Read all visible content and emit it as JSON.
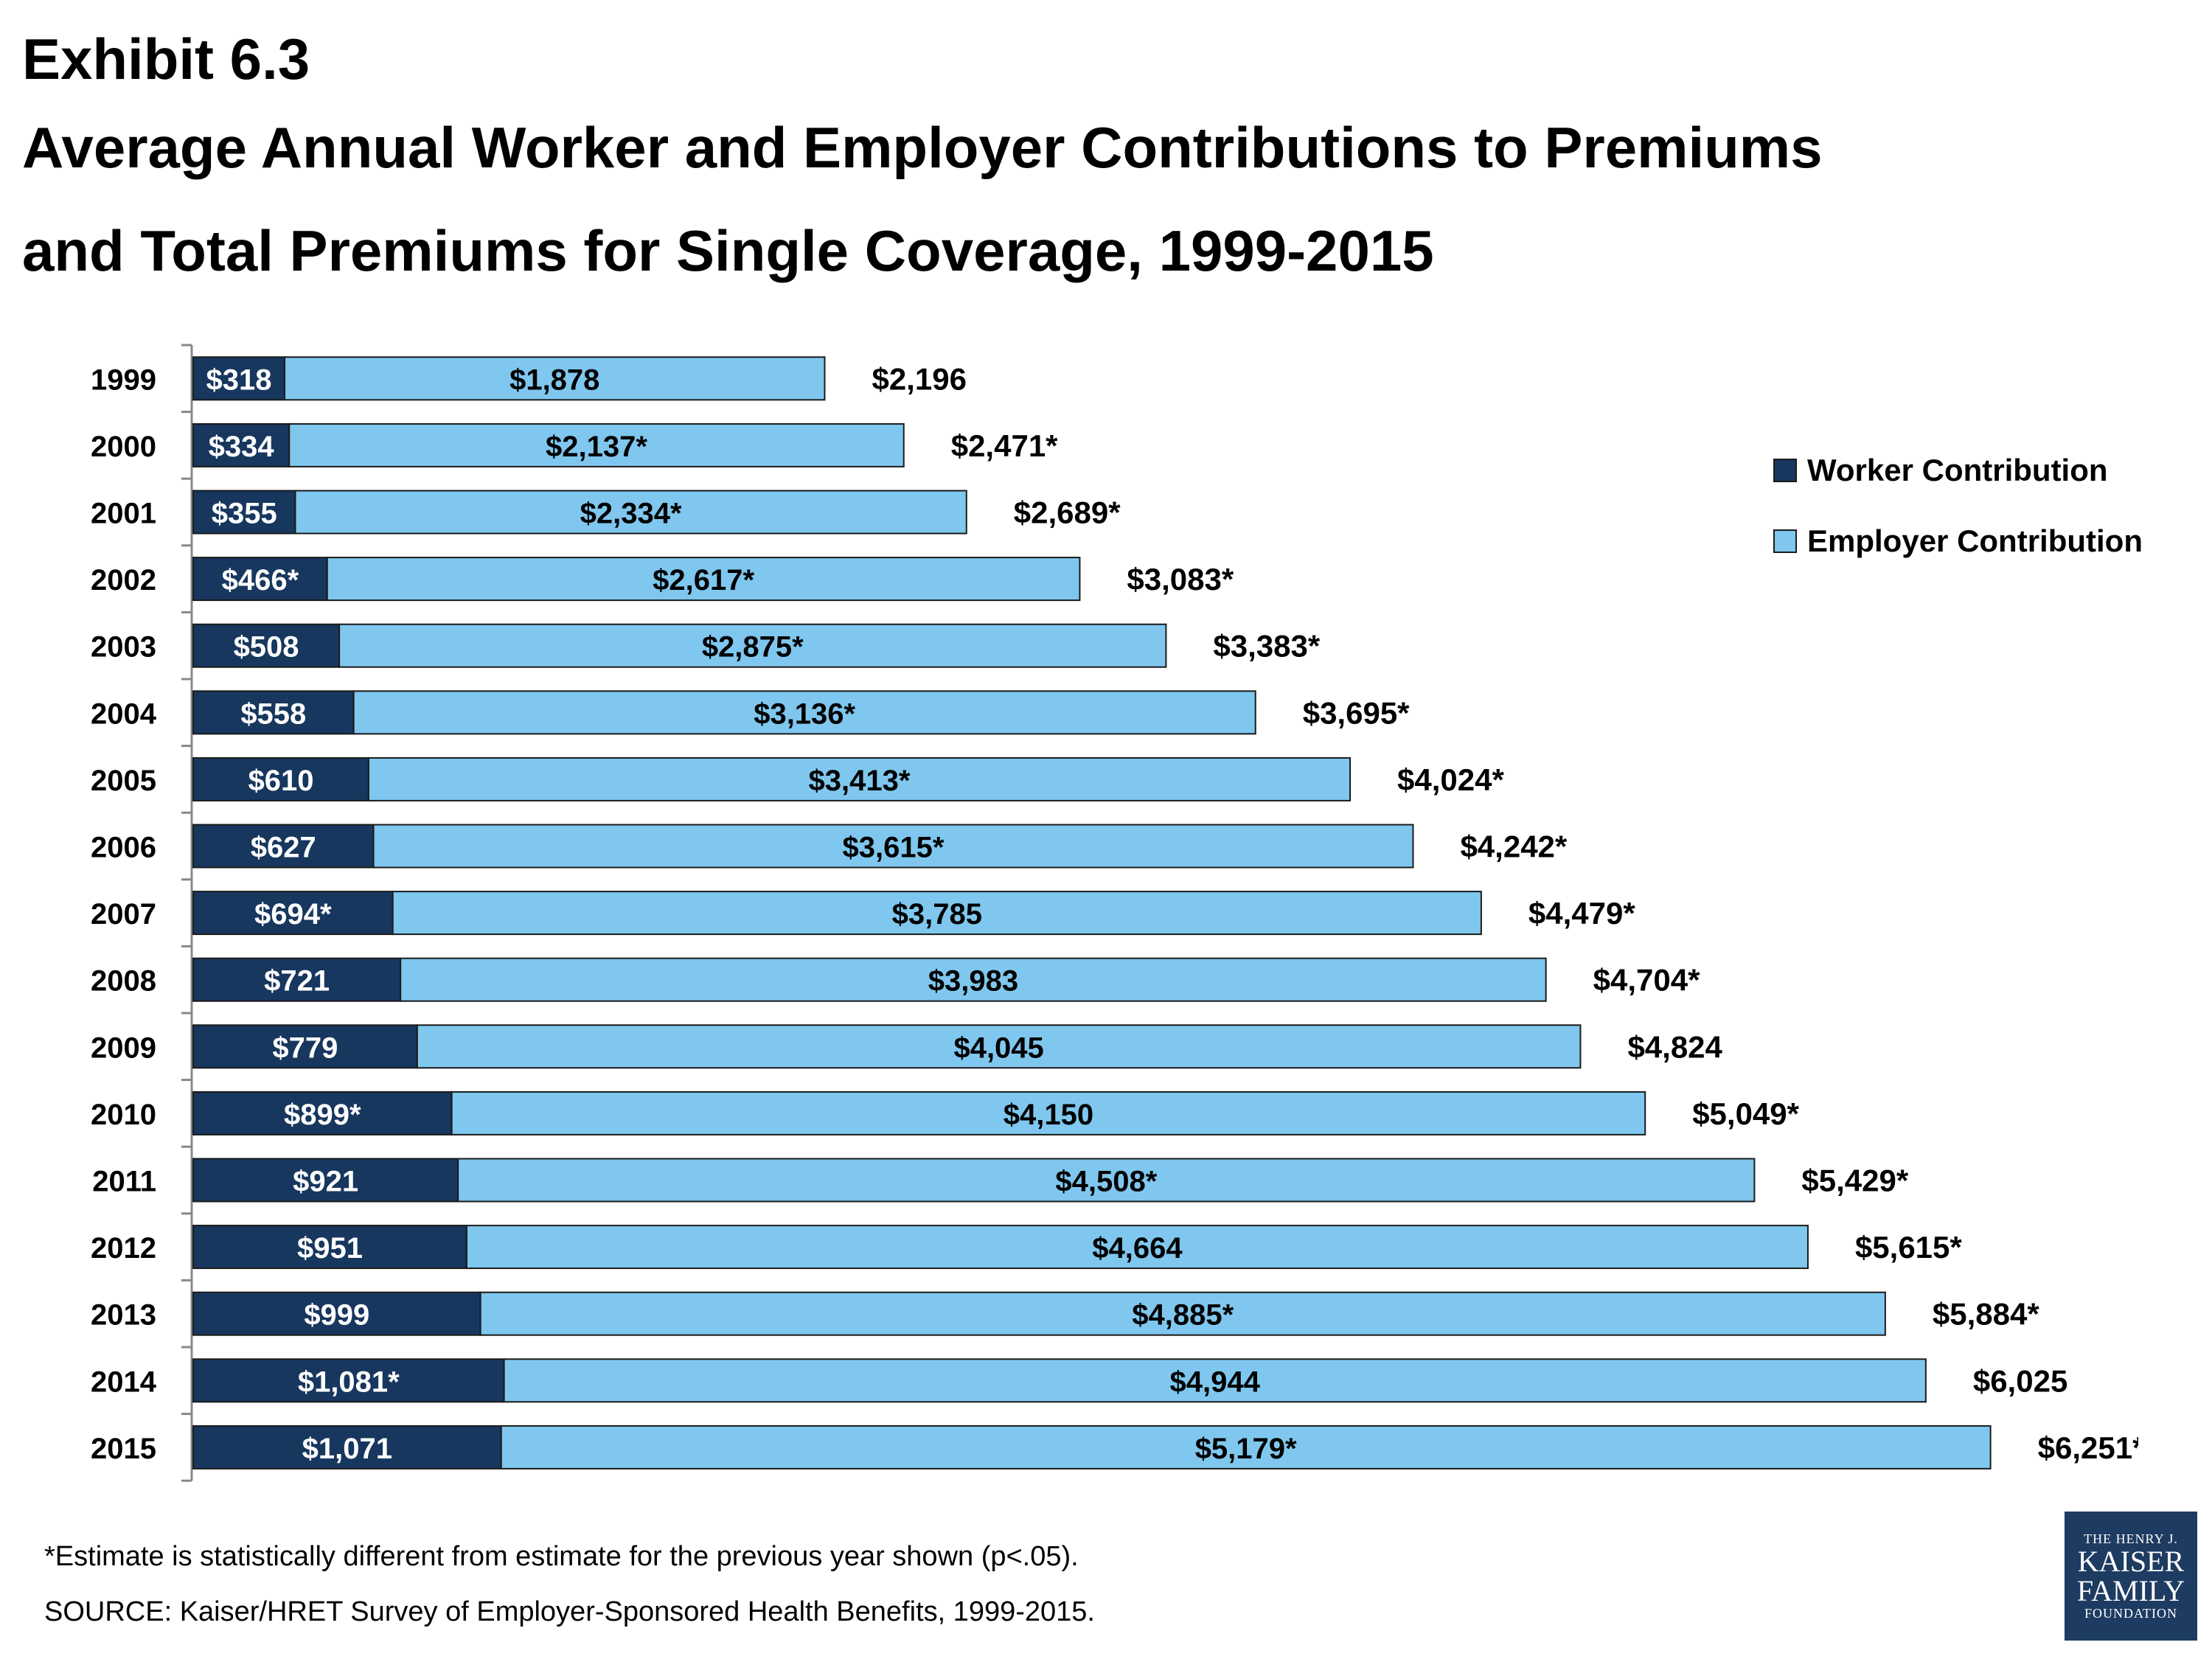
{
  "exhibit": "Exhibit 6.3",
  "title_line1": "Average Annual Worker and Employer Contributions to Premiums",
  "title_line2": "and Total Premiums for Single Coverage, 1999-2015",
  "legend": {
    "worker": "Worker Contribution",
    "employer": "Employer Contribution"
  },
  "footnote": "*Estimate is statistically different from estimate for the previous year shown (p<.05).",
  "source": "SOURCE:  Kaiser/HRET Survey of Employer-Sponsored Health Benefits, 1999-2015.",
  "logo": {
    "line1": "THE HENRY J.",
    "line2": "KAISER",
    "line3": "FAMILY",
    "line4": "FOUNDATION"
  },
  "colors": {
    "worker": "#17375e",
    "employer": "#7fc7ee",
    "border": "#1a1a1a"
  },
  "chart_data": {
    "type": "bar",
    "orientation": "horizontal",
    "stacked": true,
    "categories": [
      "1999",
      "2000",
      "2001",
      "2002",
      "2003",
      "2004",
      "2005",
      "2006",
      "2007",
      "2008",
      "2009",
      "2010",
      "2011",
      "2012",
      "2013",
      "2014",
      "2015"
    ],
    "series": [
      {
        "name": "Worker Contribution",
        "values": [
          318,
          334,
          355,
          466,
          508,
          558,
          610,
          627,
          694,
          721,
          779,
          899,
          921,
          951,
          999,
          1081,
          1071
        ],
        "labels": [
          "$318",
          "$334",
          "$355",
          "$466*",
          "$508",
          "$558",
          "$610",
          "$627",
          "$694*",
          "$721",
          "$779",
          "$899*",
          "$921",
          "$951",
          "$999",
          "$1,081*",
          "$1,071"
        ]
      },
      {
        "name": "Employer Contribution",
        "values": [
          1878,
          2137,
          2334,
          2617,
          2875,
          3136,
          3413,
          3615,
          3785,
          3983,
          4045,
          4150,
          4508,
          4664,
          4885,
          4944,
          5179
        ],
        "labels": [
          "$1,878",
          "$2,137*",
          "$2,334*",
          "$2,617*",
          "$2,875*",
          "$3,136*",
          "$3,413*",
          "$3,615*",
          "$3,785",
          "$3,983",
          "$4,045",
          "$4,150",
          "$4,508*",
          "$4,664",
          "$4,885*",
          "$4,944",
          "$5,179*"
        ]
      }
    ],
    "totals": [
      2196,
      2471,
      2689,
      3083,
      3383,
      3695,
      4024,
      4242,
      4479,
      4704,
      4824,
      5049,
      5429,
      5615,
      5884,
      6025,
      6251
    ],
    "total_labels": [
      "$2,196",
      "$2,471*",
      "$2,689*",
      "$3,083*",
      "$3,383*",
      "$3,695*",
      "$4,024*",
      "$4,242*",
      "$4,479*",
      "$4,704*",
      "$4,824",
      "$5,049*",
      "$5,429*",
      "$5,615*",
      "$5,884*",
      "$6,025",
      "$6,251*"
    ],
    "xlim": [
      0,
      6251
    ],
    "grid": false,
    "legend_position": "right"
  }
}
